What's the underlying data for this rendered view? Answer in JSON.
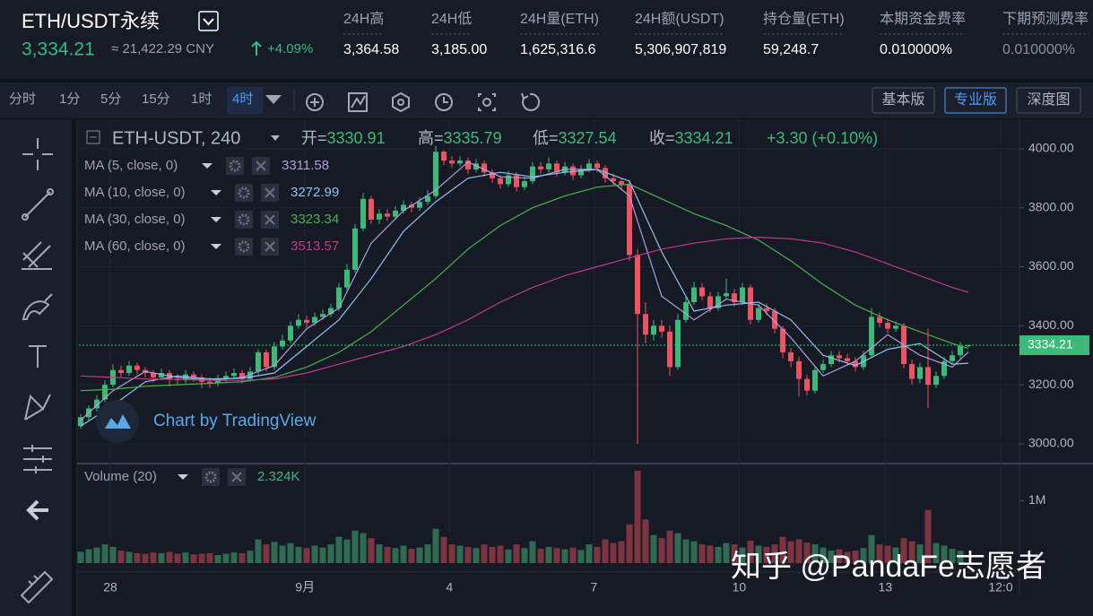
{
  "header": {
    "symbol": "ETH/USDT永续",
    "price": "3,334.21",
    "cny": "≈ 21,422.29 CNY",
    "change": "+4.09%",
    "stats": [
      {
        "label": "24H高",
        "value": "3,364.58"
      },
      {
        "label": "24H低",
        "value": "3,185.00"
      },
      {
        "label": "24H量(ETH)",
        "value": "1,625,316.6"
      },
      {
        "label": "24H额(USDT)",
        "value": "5,306,907,819"
      },
      {
        "label": "持仓量(ETH)",
        "value": "59,248.7"
      },
      {
        "label": "本期资金费率",
        "value": "0.010000%"
      },
      {
        "label": "下期预测费率",
        "value": "0.010000%"
      }
    ]
  },
  "toolbar": {
    "intervals": [
      "分时",
      "1分",
      "5分",
      "15分",
      "1时",
      "4时"
    ],
    "selected": 5,
    "modes": [
      "基本版",
      "专业版",
      "深度图"
    ],
    "selected_mode": 1
  },
  "chart_data": {
    "type": "candlestick",
    "title": "ETH-USDT, 240",
    "ohlc_labels": [
      "开=",
      "高=",
      "低=",
      "收="
    ],
    "change_label": "+3.30 (+0.10%)",
    "up_color": "#3cba7a",
    "down_color": "#ef5361",
    "open": [
      3060,
      3090,
      3120,
      3150,
      3200,
      3250,
      3240,
      3265,
      3250,
      3240,
      3225,
      3240,
      3220,
      3215,
      3235,
      3225,
      3210,
      3205,
      3220,
      3230,
      3240,
      3220,
      3245,
      3310,
      3260,
      3330,
      3350,
      3400,
      3420,
      3410,
      3430,
      3440,
      3460,
      3530,
      3590,
      3730,
      3830,
      3760,
      3780,
      3770,
      3790,
      3810,
      3800,
      3820,
      3840,
      3990,
      3960,
      3950,
      3960,
      3930,
      3950,
      3920,
      3900,
      3880,
      3910,
      3870,
      3890,
      3940,
      3930,
      3950,
      3920,
      3940,
      3910,
      3930,
      3950,
      3935,
      3900,
      3890,
      3880,
      3640,
      3440,
      3370,
      3400,
      3380,
      3260,
      3420,
      3480,
      3530,
      3500,
      3460,
      3500,
      3510,
      3480,
      3530,
      3420,
      3460,
      3450,
      3390,
      3310,
      3280,
      3220,
      3180,
      3250,
      3270,
      3300,
      3290,
      3280,
      3260,
      3300,
      3430,
      3410,
      3390,
      3400,
      3270,
      3220,
      3260,
      3200,
      3230,
      3280,
      3300,
      3330.91
    ],
    "high": [
      3100,
      3130,
      3165,
      3215,
      3270,
      3265,
      3280,
      3275,
      3260,
      3250,
      3255,
      3250,
      3235,
      3250,
      3245,
      3235,
      3225,
      3235,
      3245,
      3255,
      3250,
      3260,
      3320,
      3320,
      3345,
      3370,
      3415,
      3440,
      3435,
      3445,
      3455,
      3475,
      3545,
      3610,
      3745,
      3850,
      3840,
      3795,
      3795,
      3805,
      3825,
      3820,
      3835,
      3860,
      4010,
      3995,
      3975,
      3975,
      3970,
      3965,
      3960,
      3930,
      3910,
      3925,
      3920,
      3905,
      3955,
      3955,
      3970,
      3960,
      3955,
      3950,
      3945,
      3965,
      3960,
      3945,
      3915,
      3900,
      3895,
      3660,
      3480,
      3420,
      3420,
      3400,
      3440,
      3500,
      3550,
      3545,
      3515,
      3515,
      3560,
      3525,
      3545,
      3540,
      3475,
      3475,
      3460,
      3400,
      3325,
      3295,
      3235,
      3265,
      3285,
      3315,
      3315,
      3305,
      3295,
      3315,
      3460,
      3445,
      3425,
      3415,
      3410,
      3285,
      3275,
      3390,
      3245,
      3295,
      3315,
      3345,
      3335.79
    ],
    "low": [
      3050,
      3080,
      3110,
      3140,
      3190,
      3225,
      3230,
      3235,
      3225,
      3210,
      3215,
      3195,
      3200,
      3205,
      3210,
      3190,
      3190,
      3195,
      3210,
      3220,
      3205,
      3210,
      3235,
      3245,
      3250,
      3320,
      3340,
      3390,
      3395,
      3400,
      3420,
      3430,
      3450,
      3520,
      3580,
      3720,
      3745,
      3745,
      3755,
      3760,
      3780,
      3785,
      3790,
      3810,
      3830,
      3945,
      3935,
      3940,
      3915,
      3920,
      3905,
      3885,
      3865,
      3870,
      3855,
      3860,
      3880,
      3915,
      3920,
      3905,
      3910,
      3895,
      3900,
      3920,
      3920,
      3885,
      3875,
      3860,
      3620,
      3000,
      3340,
      3350,
      3360,
      3230,
      3250,
      3410,
      3470,
      3485,
      3445,
      3450,
      3490,
      3465,
      3470,
      3405,
      3410,
      3435,
      3375,
      3290,
      3260,
      3160,
      3165,
      3170,
      3240,
      3260,
      3275,
      3265,
      3245,
      3250,
      3290,
      3395,
      3375,
      3380,
      3255,
      3200,
      3205,
      3120,
      3190,
      3220,
      3270,
      3290,
      3327.54
    ],
    "close": [
      3090,
      3120,
      3150,
      3200,
      3250,
      3240,
      3265,
      3250,
      3240,
      3225,
      3240,
      3220,
      3215,
      3235,
      3225,
      3210,
      3205,
      3220,
      3230,
      3240,
      3220,
      3245,
      3310,
      3260,
      3330,
      3350,
      3400,
      3420,
      3410,
      3430,
      3440,
      3460,
      3530,
      3590,
      3730,
      3830,
      3760,
      3780,
      3770,
      3790,
      3810,
      3800,
      3820,
      3840,
      3990,
      3960,
      3950,
      3960,
      3930,
      3950,
      3920,
      3900,
      3880,
      3910,
      3870,
      3890,
      3940,
      3930,
      3950,
      3920,
      3940,
      3910,
      3930,
      3950,
      3935,
      3900,
      3890,
      3880,
      3640,
      3440,
      3370,
      3400,
      3380,
      3260,
      3420,
      3480,
      3530,
      3500,
      3460,
      3500,
      3510,
      3480,
      3530,
      3420,
      3460,
      3450,
      3390,
      3310,
      3280,
      3220,
      3180,
      3250,
      3270,
      3300,
      3290,
      3280,
      3260,
      3300,
      3430,
      3410,
      3390,
      3400,
      3270,
      3220,
      3260,
      3200,
      3230,
      3280,
      3300,
      3330.91,
      3334.21
    ],
    "xlim": [
      -0.22,
      116.33
    ],
    "ylim": [
      2936,
      4100
    ],
    "yticks": [
      {
        "value": 4000,
        "label": "4000.00"
      },
      {
        "value": 3800,
        "label": "3800.00"
      },
      {
        "value": 3600,
        "label": "3600.00"
      },
      {
        "value": 3400,
        "label": "3400.00"
      },
      {
        "value": 3200,
        "label": "3200.00"
      },
      {
        "value": 3000,
        "label": "3000.00"
      }
    ],
    "xticks": [
      {
        "value": 3.67,
        "label": "28"
      },
      {
        "value": 27.8,
        "label": "9月"
      },
      {
        "value": 45.7,
        "label": "4"
      },
      {
        "value": 63.6,
        "label": "7"
      },
      {
        "value": 81.6,
        "label": "10"
      },
      {
        "value": 99.7,
        "label": "13"
      },
      {
        "value": 114,
        "label": "12:0"
      }
    ],
    "grid": true,
    "ma": {
      "x": [
        0,
        4,
        8,
        12,
        16,
        20,
        24,
        28,
        32,
        36,
        40,
        44,
        48,
        52,
        56,
        60,
        64,
        68,
        72,
        76,
        80,
        84,
        88,
        92,
        96,
        100,
        104,
        108,
        110
      ],
      "series": [
        {
          "name": "MA (5, close, 0)",
          "color": "#b39ddb",
          "values": [
            3080,
            3180,
            3245,
            3225,
            3215,
            3225,
            3265,
            3390,
            3460,
            3680,
            3790,
            3860,
            3955,
            3905,
            3900,
            3930,
            3930,
            3840,
            3500,
            3420,
            3490,
            3470,
            3360,
            3230,
            3280,
            3370,
            3300,
            3260,
            3311.58
          ]
        },
        {
          "name": "MA (10, close, 0)",
          "color": "#90c2ec",
          "values": [
            3060,
            3130,
            3210,
            3230,
            3220,
            3222,
            3240,
            3330,
            3420,
            3560,
            3720,
            3820,
            3900,
            3920,
            3905,
            3920,
            3930,
            3890,
            3650,
            3450,
            3470,
            3480,
            3420,
            3300,
            3265,
            3320,
            3340,
            3270,
            3272.99
          ]
        },
        {
          "name": "MA (30, close, 0)",
          "color": "#4caf50",
          "values": [
            3180,
            3185,
            3195,
            3200,
            3205,
            3210,
            3225,
            3260,
            3310,
            3380,
            3470,
            3560,
            3660,
            3740,
            3800,
            3840,
            3870,
            3880,
            3830,
            3780,
            3740,
            3690,
            3620,
            3540,
            3470,
            3420,
            3380,
            3340,
            3323.34
          ]
        },
        {
          "name": "MA (60, close, 0)",
          "color": "#c2398f",
          "values": [
            3230,
            3225,
            3220,
            3218,
            3215,
            3215,
            3220,
            3240,
            3270,
            3300,
            3330,
            3370,
            3420,
            3480,
            3530,
            3570,
            3600,
            3630,
            3660,
            3680,
            3695,
            3700,
            3695,
            3680,
            3650,
            3610,
            3570,
            3530,
            3513.57
          ]
        }
      ]
    },
    "volume": {
      "title": "Volume (20)",
      "up_color": "#2f6b52",
      "down_color": "#7d3440",
      "values": [
        180000,
        220000,
        250000,
        300000,
        260000,
        200000,
        180000,
        160000,
        150000,
        170000,
        160000,
        180000,
        150000,
        170000,
        140000,
        150000,
        160000,
        130000,
        150000,
        170000,
        160000,
        200000,
        380000,
        300000,
        340000,
        280000,
        320000,
        260000,
        240000,
        280000,
        250000,
        300000,
        420000,
        380000,
        520000,
        480000,
        400000,
        300000,
        260000,
        240000,
        280000,
        230000,
        250000,
        300000,
        550000,
        420000,
        300000,
        280000,
        260000,
        240000,
        300000,
        260000,
        280000,
        220000,
        300000,
        240000,
        350000,
        230000,
        260000,
        240000,
        220000,
        250000,
        210000,
        300000,
        260000,
        380000,
        320000,
        350000,
        620000,
        1480000,
        700000,
        450000,
        400000,
        520000,
        480000,
        380000,
        350000,
        300000,
        280000,
        260000,
        320000,
        300000,
        250000,
        360000,
        280000,
        260000,
        300000,
        420000,
        350000,
        380000,
        330000,
        300000,
        250000,
        200000,
        220000,
        180000,
        200000,
        240000,
        450000,
        300000,
        280000,
        250000,
        400000,
        350000,
        300000,
        850000,
        320000,
        280000,
        230000,
        200000,
        2324
      ],
      "value_labels": {
        "110": "2.324K"
      },
      "ylim": [
        0,
        1580000
      ],
      "yticks": [
        {
          "value": 1000000,
          "label": "1M"
        }
      ]
    },
    "credit": "Chart by TradingView"
  },
  "watermark": "知乎 @PandaFe志愿者"
}
